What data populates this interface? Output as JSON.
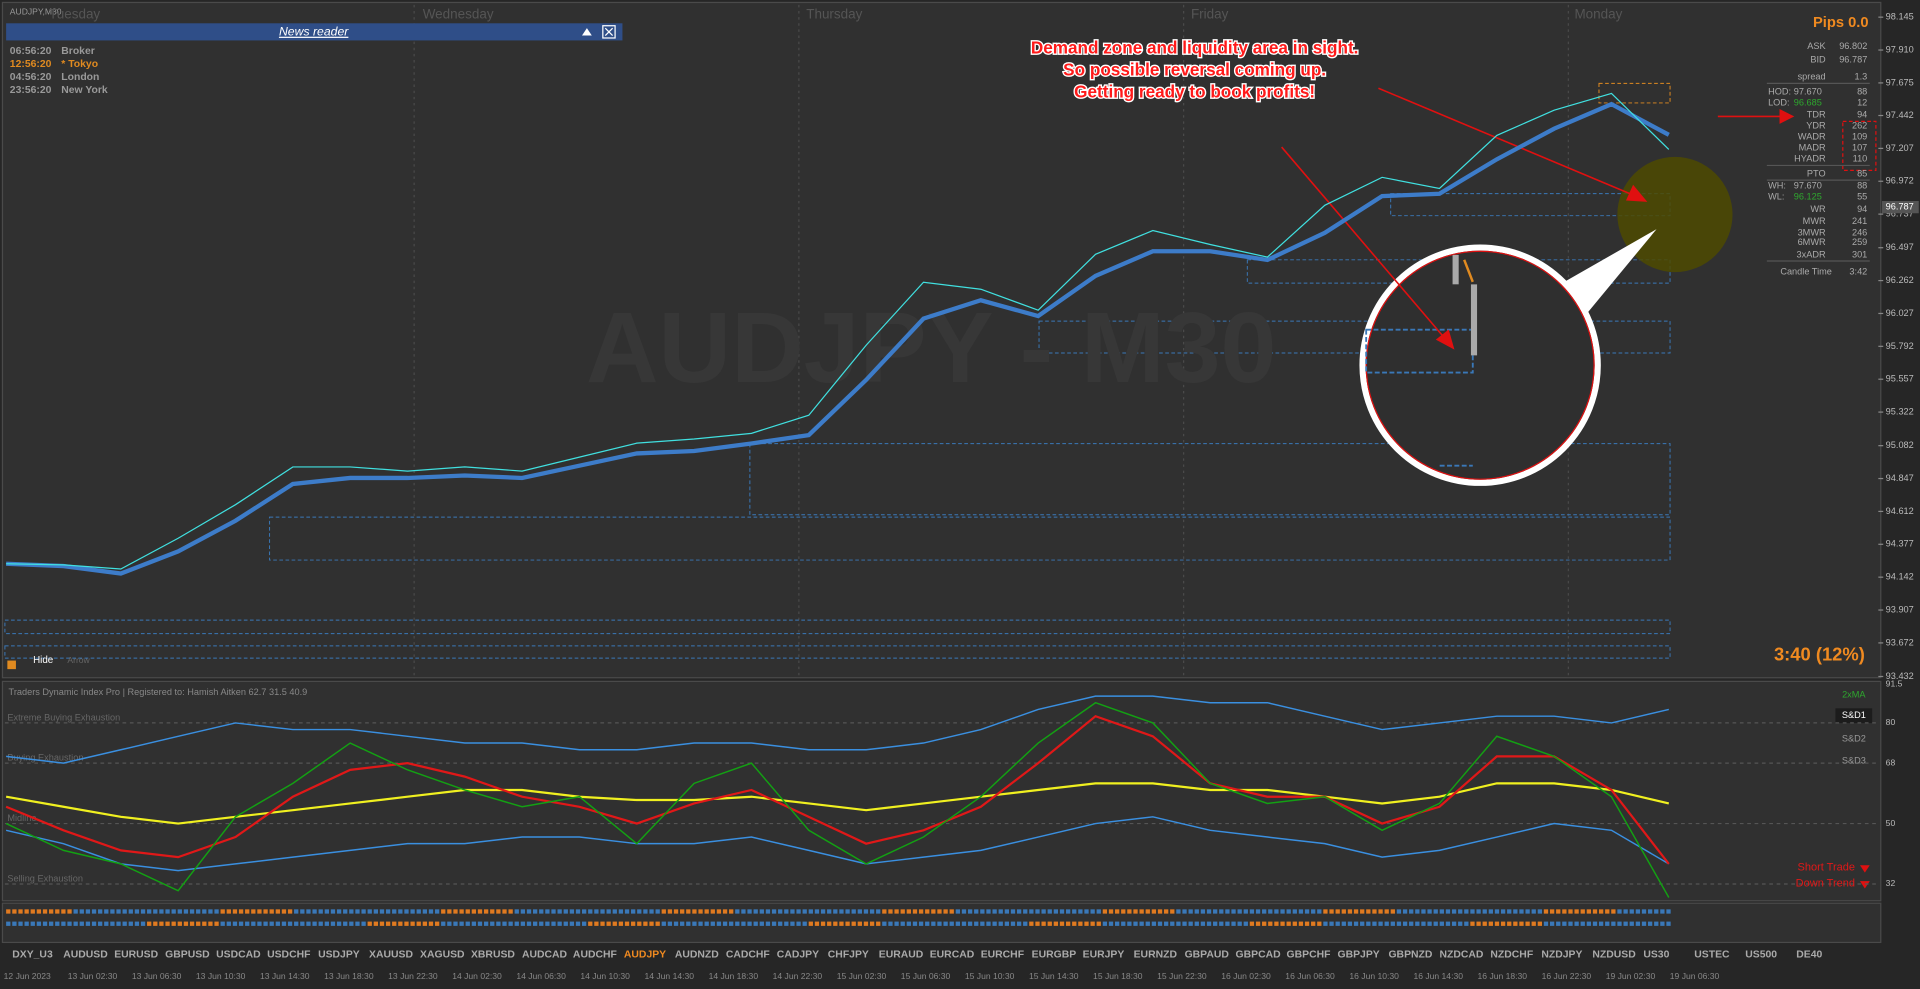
{
  "window": {
    "symbol_label": "AUDJPY,M30",
    "watermark": "AUDJPY - M30"
  },
  "days": [
    "Tuesday",
    "Wednesday",
    "Thursday",
    "Friday",
    "Monday"
  ],
  "news_reader": {
    "title": "News reader",
    "clocks": [
      {
        "time": "06:56:20",
        "city": "Broker"
      },
      {
        "time": "12:56:20",
        "city": "* Tokyo"
      },
      {
        "time": "04:56:20",
        "city": "London"
      },
      {
        "time": "23:56:20",
        "city": "New York"
      }
    ]
  },
  "annotation": [
    "Demand zone and liquidity area in sight.",
    "So possible reversal coming up.",
    "Getting ready to book profits!"
  ],
  "price_chart": {
    "ylim": [
      93.432,
      98.145
    ],
    "yticks": [
      98.145,
      {
        "value": 97.91,
        "label": "97.910"
      },
      97.675,
      97.442,
      97.207,
      96.972,
      96.737,
      96.497,
      96.262,
      96.027,
      95.792,
      95.557,
      95.322,
      95.082,
      94.847,
      94.612,
      94.377,
      94.142,
      93.907,
      93.672,
      93.432
    ],
    "current_price": 96.787,
    "series": [
      {
        "color": "#3d7cc9",
        "values": [
          94.238,
          94.221,
          94.168,
          94.326,
          94.545,
          94.808,
          94.851,
          94.851,
          94.869,
          94.851,
          94.939,
          95.026,
          95.044,
          95.097,
          95.158,
          95.552,
          95.99,
          96.121,
          96.008,
          96.296,
          96.472,
          96.472,
          96.41,
          96.603,
          96.866,
          96.883,
          97.129,
          97.348,
          97.523,
          97.304
        ]
      },
      {
        "color": "#40e0e0",
        "values": [
          94.238,
          94.23,
          94.2,
          94.42,
          94.66,
          94.93,
          94.93,
          94.9,
          94.93,
          94.9,
          95.0,
          95.1,
          95.13,
          95.17,
          95.3,
          95.8,
          96.25,
          96.2,
          96.05,
          96.45,
          96.62,
          96.52,
          96.43,
          96.8,
          97.0,
          96.92,
          97.3,
          97.48,
          97.6,
          97.2
        ]
      }
    ]
  },
  "info_panel": {
    "pips": "Pips 0.0",
    "rows": [
      [
        "ASK",
        "96.802"
      ],
      [
        "BID",
        "96.787"
      ],
      [
        "spread",
        "1.3"
      ],
      [
        "HOD:",
        "97.670",
        "88"
      ],
      [
        "LOD:",
        "96.685",
        "12"
      ],
      [
        "TDR",
        "94"
      ],
      [
        "YDR",
        "262"
      ],
      [
        "WADR",
        "109"
      ],
      [
        "MADR",
        "107"
      ],
      [
        "HYADR",
        "110"
      ],
      [
        "PTO",
        "85"
      ],
      [
        "WH:",
        "97.670",
        "88"
      ],
      [
        "WL:",
        "96.125",
        "55"
      ],
      [
        "WR",
        "94"
      ],
      [
        "MWR",
        "241"
      ],
      [
        "3MWR",
        "246"
      ],
      [
        "6MWR",
        "259"
      ],
      [
        "3xADR",
        "301"
      ]
    ],
    "candle_time": [
      "Candle Time",
      "3:42"
    ]
  },
  "timer": "3:40 (12%)",
  "controls": [
    "Hide",
    "Arrow"
  ],
  "tdi": {
    "title": "Traders Dynamic Index Pro | Registered to: Hamish Aitken 62.7 31.5 40.9",
    "ylim": [
      27,
      92
    ],
    "yticks": [
      91.5,
      80,
      68,
      50,
      32
    ],
    "zone_labels": [
      "Extreme Buying Exhaustion",
      "Buying Exhaustion",
      "Midline",
      "Selling Exhaustion"
    ],
    "legend": [
      "2xMA",
      "S&D1",
      "S&D2",
      "S&D3"
    ],
    "signals": [
      "Short Trade",
      "Down Trend"
    ],
    "series": [
      {
        "color": "#3a8fe0",
        "values": [
          70,
          68,
          72,
          76,
          80,
          78,
          78,
          76,
          74,
          74,
          72,
          72,
          74,
          74,
          72,
          72,
          74,
          78,
          84,
          88,
          88,
          86,
          86,
          82,
          78,
          80,
          82,
          82,
          80,
          84
        ]
      },
      {
        "color": "#3a8fe0",
        "values": [
          48,
          44,
          38,
          36,
          38,
          40,
          42,
          44,
          44,
          46,
          46,
          44,
          44,
          46,
          42,
          38,
          40,
          42,
          46,
          50,
          52,
          48,
          46,
          44,
          40,
          42,
          46,
          50,
          48,
          38
        ]
      },
      {
        "color": "#f0f020",
        "values": [
          58,
          55,
          52,
          50,
          52,
          54,
          56,
          58,
          60,
          60,
          58,
          57,
          57,
          58,
          56,
          54,
          56,
          58,
          60,
          62,
          62,
          60,
          60,
          58,
          56,
          58,
          62,
          62,
          60,
          56
        ]
      },
      {
        "color": "#e01818",
        "values": [
          55,
          48,
          42,
          40,
          46,
          58,
          66,
          68,
          64,
          58,
          55,
          50,
          56,
          60,
          52,
          44,
          48,
          55,
          68,
          82,
          76,
          62,
          58,
          58,
          50,
          55,
          70,
          70,
          60,
          38
        ]
      },
      {
        "color": "#13a013",
        "values": [
          50,
          42,
          38,
          30,
          52,
          62,
          74,
          66,
          60,
          55,
          58,
          44,
          62,
          68,
          48,
          38,
          46,
          58,
          74,
          86,
          80,
          62,
          56,
          58,
          48,
          56,
          76,
          70,
          58,
          28
        ]
      }
    ]
  },
  "symbols": [
    "DXY_U3",
    "AUDUSD",
    "EURUSD",
    "GBPUSD",
    "USDCAD",
    "USDCHF",
    "USDJPY",
    "XAUUSD",
    "XAGUSD",
    "XBRUSD",
    "AUDCAD",
    "AUDCHF",
    "AUDJPY",
    "AUDNZD",
    "CADCHF",
    "CADJPY",
    "CHFJPY",
    "EURAUD",
    "EURCAD",
    "EURCHF",
    "EURGBP",
    "EURJPY",
    "EURNZD",
    "GBPAUD",
    "GBPCAD",
    "GBPCHF",
    "GBPJPY",
    "GBPNZD",
    "NZDCAD",
    "NZDCHF",
    "NZDJPY",
    "NZDUSD",
    "US30",
    "USTEC",
    "US500",
    "DE40"
  ],
  "active_symbol": 12,
  "time_axis": [
    "12 Jun 2023",
    "13 Jun 02:30",
    "13 Jun 06:30",
    "13 Jun 10:30",
    "13 Jun 14:30",
    "13 Jun 18:30",
    "13 Jun 22:30",
    "14 Jun 02:30",
    "14 Jun 06:30",
    "14 Jun 10:30",
    "14 Jun 14:30",
    "14 Jun 18:30",
    "14 Jun 22:30",
    "15 Jun 02:30",
    "15 Jun 06:30",
    "15 Jun 10:30",
    "15 Jun 14:30",
    "15 Jun 18:30",
    "15 Jun 22:30",
    "16 Jun 02:30",
    "16 Jun 06:30",
    "16 Jun 10:30",
    "16 Jun 14:30",
    "16 Jun 18:30",
    "16 Jun 22:30",
    "19 Jun 02:30",
    "19 Jun 06:30"
  ]
}
